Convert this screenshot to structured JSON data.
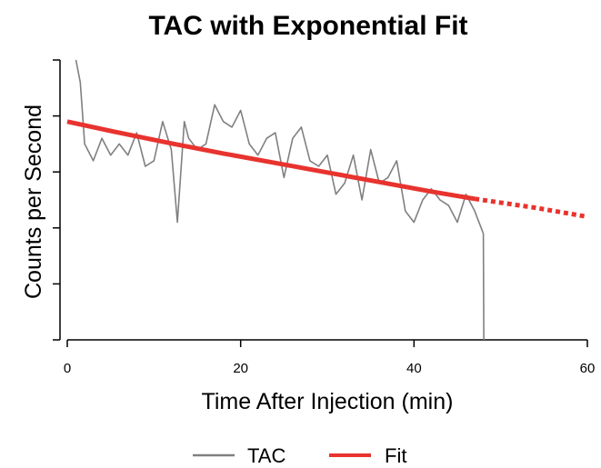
{
  "chart_data": {
    "type": "line",
    "title": "TAC with Exponential Fit",
    "xlabel": "Time After Injection (min)",
    "ylabel": "Counts per Second",
    "xlim": [
      0,
      60
    ],
    "ylim": [
      0,
      5
    ],
    "x_ticks": [
      0,
      20,
      40,
      60
    ],
    "y_ticks": [
      0,
      1,
      2,
      3,
      4,
      5
    ],
    "y_tick_labels_visible": false,
    "grid": false,
    "legend": {
      "position": "bottom",
      "entries": [
        "TAC",
        "Fit"
      ]
    },
    "colors": {
      "TAC": "#808080",
      "Fit": "#e8332e"
    },
    "series": [
      {
        "name": "TAC",
        "style": "solid",
        "x": [
          1,
          1.5,
          2,
          3,
          4,
          5,
          6,
          7,
          8,
          9,
          10,
          11,
          12,
          12.7,
          13.5,
          14,
          15,
          16,
          17,
          18,
          19,
          20,
          21,
          22,
          23,
          24,
          25,
          26,
          27,
          28,
          29,
          30,
          31,
          32,
          33,
          34,
          35,
          36,
          37,
          38,
          39,
          40,
          41,
          42,
          43,
          44,
          45,
          46,
          47,
          48,
          48.05
        ],
        "y": [
          5.0,
          4.6,
          3.5,
          3.2,
          3.6,
          3.3,
          3.5,
          3.3,
          3.7,
          3.1,
          3.2,
          3.9,
          3.4,
          2.1,
          3.9,
          3.6,
          3.4,
          3.5,
          4.2,
          3.9,
          3.8,
          4.1,
          3.5,
          3.3,
          3.6,
          3.7,
          2.9,
          3.6,
          3.8,
          3.2,
          3.1,
          3.3,
          2.6,
          2.8,
          3.3,
          2.5,
          3.4,
          2.8,
          2.9,
          3.2,
          2.3,
          2.1,
          2.5,
          2.7,
          2.5,
          2.4,
          2.1,
          2.6,
          2.3,
          1.9,
          0.0
        ]
      },
      {
        "name": "Fit",
        "style": "solid-then-dotted",
        "solid_until_x": 47,
        "x": [
          0,
          6,
          12,
          18,
          24,
          30,
          36,
          42,
          47,
          54,
          60
        ],
        "y": [
          3.9,
          3.7,
          3.51,
          3.33,
          3.16,
          2.99,
          2.82,
          2.65,
          2.52,
          2.36,
          2.2
        ]
      }
    ]
  }
}
